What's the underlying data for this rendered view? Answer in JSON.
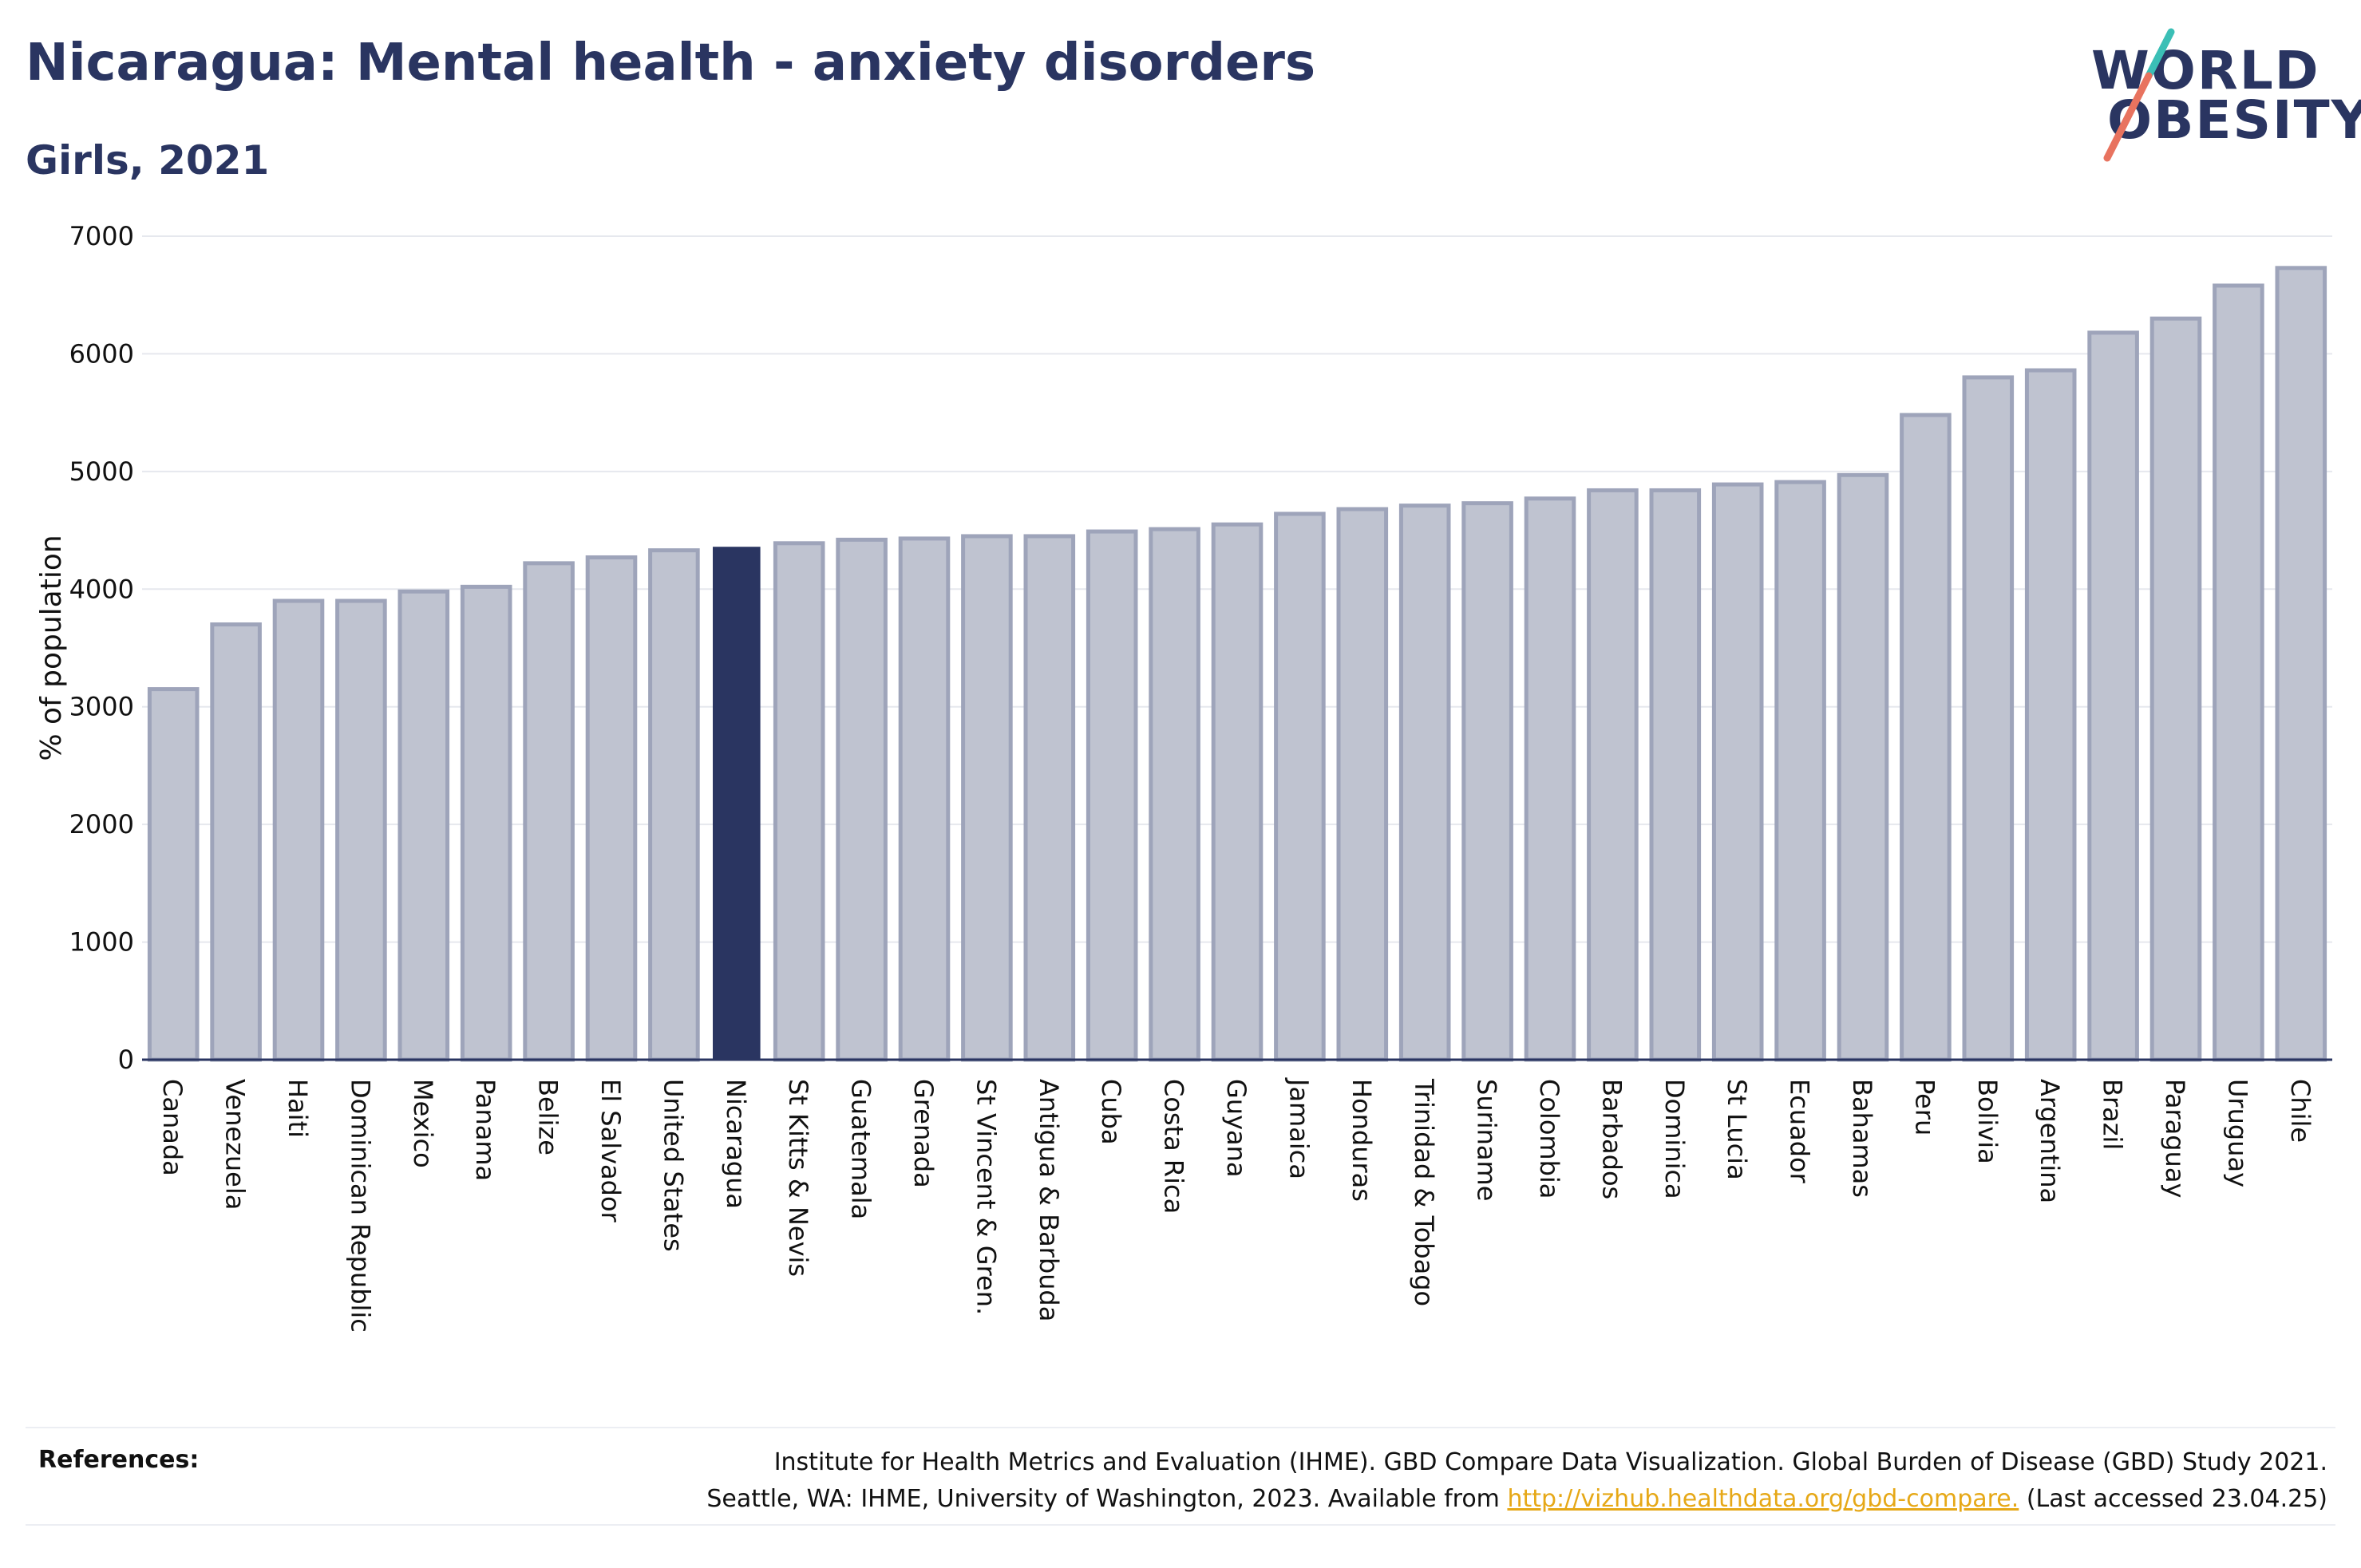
{
  "header": {
    "title": "Nicaragua: Mental health - anxiety disorders",
    "subtitle": "Girls, 2021"
  },
  "logo": {
    "line1": "WORLD",
    "line2": "OBESITY",
    "colors": {
      "text": "#2a3561",
      "slash_teal": "#3bbfb6",
      "slash_coral": "#e8735f"
    }
  },
  "colors": {
    "highlight_bar": "#2a3561",
    "bar_fill": "#bfc3d0",
    "bar_stroke": "#9ea4ba",
    "gridline": "#e6e8ee",
    "axis": "#2a3561"
  },
  "chart_data": {
    "type": "bar",
    "title": "Nicaragua: Mental health - anxiety disorders",
    "subtitle": "Girls, 2021",
    "xlabel": "",
    "ylabel": "% of population",
    "ylim": [
      0,
      7000
    ],
    "yticks": [
      0,
      1000,
      2000,
      3000,
      4000,
      5000,
      6000,
      7000
    ],
    "grid": true,
    "highlight": "Nicaragua",
    "categories": [
      "Canada",
      "Venezuela",
      "Haiti",
      "Dominican Republic",
      "Mexico",
      "Panama",
      "Belize",
      "El Salvador",
      "United States",
      "Nicaragua",
      "St Kitts & Nevis",
      "Guatemala",
      "Grenada",
      "St Vincent & Gren.",
      "Antigua & Barbuda",
      "Cuba",
      "Costa Rica",
      "Guyana",
      "Jamaica",
      "Honduras",
      "Trinidad & Tobago",
      "Suriname",
      "Colombia",
      "Barbados",
      "Dominica",
      "St Lucia",
      "Ecuador",
      "Bahamas",
      "Peru",
      "Bolivia",
      "Argentina",
      "Brazil",
      "Paraguay",
      "Uruguay",
      "Chile"
    ],
    "values": [
      3150,
      3700,
      3900,
      3900,
      3980,
      4020,
      4220,
      4270,
      4330,
      4360,
      4390,
      4420,
      4430,
      4450,
      4450,
      4490,
      4510,
      4550,
      4640,
      4680,
      4710,
      4730,
      4770,
      4840,
      4840,
      4890,
      4910,
      4970,
      5480,
      5800,
      5860,
      6180,
      6300,
      6580,
      6730
    ]
  },
  "references": {
    "label": "References:",
    "line1": "Institute for Health Metrics and Evaluation (IHME). GBD Compare Data Visualization. Global Burden of Disease (GBD) Study 2021.",
    "line2_prefix": "Seattle, WA: IHME, University of Washington, 2023. Available from ",
    "link": "http://vizhub.healthdata.org/gbd-compare.",
    "line2_suffix": " (Last accessed 23.04.25)"
  }
}
